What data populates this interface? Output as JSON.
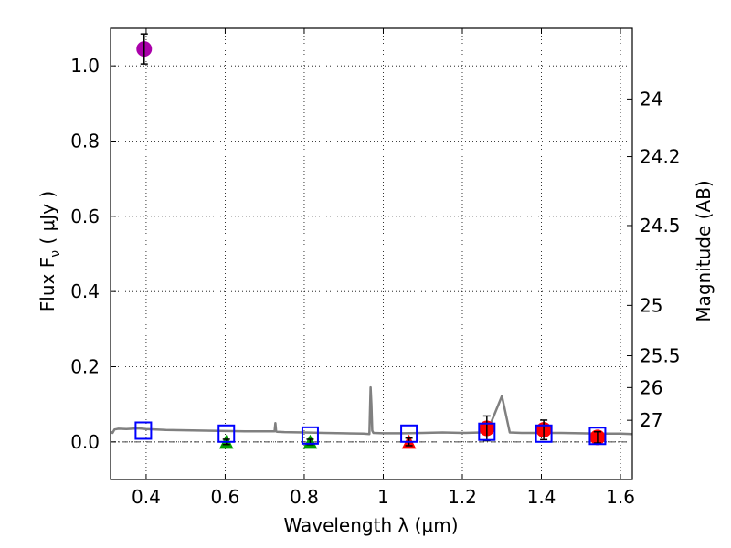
{
  "chart_data": {
    "type": "scatter",
    "xlabel": "Wavelength  λ (μm)",
    "ylabel": "Flux  F",
    "ylabel_sub": "ν",
    "ylabel_unit": "  ( μJy )",
    "y2label": "Magnitude (AB)",
    "xlim": [
      0.31,
      1.63
    ],
    "ylim": [
      -0.1,
      1.1
    ],
    "grid": true,
    "x_ticks": [
      "0.4",
      "0.6",
      "0.8",
      "1",
      "1.2",
      "1.4",
      "1.6"
    ],
    "y_ticks": [
      "0.0",
      "0.2",
      "0.4",
      "0.6",
      "0.8",
      "1.0"
    ],
    "y2_ticks": [
      {
        "label": "24",
        "flux": 0.912
      },
      {
        "label": "24.2",
        "flux": 0.7586
      },
      {
        "label": "24.5",
        "flux": 0.5754
      },
      {
        "label": "25",
        "flux": 0.3631
      },
      {
        "label": "25.5",
        "flux": 0.2291
      },
      {
        "label": "26",
        "flux": 0.1445
      },
      {
        "label": "27",
        "flux": 0.0575
      }
    ],
    "series": [
      {
        "marker": "circle",
        "color": "#aa00aa",
        "x": [
          0.395
        ],
        "y": [
          1.045
        ],
        "yerr": [
          0.04
        ]
      },
      {
        "marker": "triangle",
        "color": "#00a000",
        "x": [
          0.603,
          0.815
        ],
        "y": [
          0.0,
          0.0
        ],
        "yerr": [
          0.007,
          0.007
        ]
      },
      {
        "marker": "triangle",
        "color": "#ff0000",
        "x": [
          1.065
        ],
        "y": [
          0.0
        ],
        "yerr": [
          0.01
        ]
      },
      {
        "marker": "circle",
        "color": "#ff0000",
        "x": [
          1.262,
          1.406,
          1.542
        ],
        "y": [
          0.036,
          0.032,
          0.012
        ],
        "yerr": [
          0.033,
          0.026,
          0.015
        ]
      },
      {
        "marker": "square",
        "color": "#0000ff",
        "x": [
          0.393,
          0.603,
          0.815,
          1.065,
          1.262,
          1.406,
          1.542
        ],
        "y": [
          0.03,
          0.022,
          0.017,
          0.022,
          0.027,
          0.022,
          0.016
        ]
      }
    ],
    "model_spectrum": {
      "color": "#808080",
      "x": [
        0.31,
        0.315,
        0.32,
        0.33,
        0.35,
        0.38,
        0.4,
        0.45,
        0.5,
        0.55,
        0.6,
        0.65,
        0.7,
        0.725,
        0.727,
        0.729,
        0.731,
        0.75,
        0.8,
        0.85,
        0.9,
        0.95,
        0.965,
        0.968,
        0.97,
        0.972,
        0.975,
        1.0,
        1.05,
        1.1,
        1.15,
        1.2,
        1.25,
        1.27,
        1.28,
        1.3,
        1.32,
        1.35,
        1.4,
        1.45,
        1.5,
        1.55,
        1.6,
        1.63
      ],
      "y": [
        0.027,
        0.024,
        0.033,
        0.035,
        0.034,
        0.036,
        0.034,
        0.032,
        0.031,
        0.03,
        0.029,
        0.028,
        0.028,
        0.028,
        0.05,
        0.028,
        0.027,
        0.026,
        0.025,
        0.024,
        0.023,
        0.022,
        0.021,
        0.145,
        0.1,
        0.03,
        0.024,
        0.023,
        0.023,
        0.024,
        0.025,
        0.024,
        0.025,
        0.045,
        0.07,
        0.122,
        0.025,
        0.024,
        0.024,
        0.024,
        0.023,
        0.022,
        0.022,
        0.021
      ]
    }
  }
}
